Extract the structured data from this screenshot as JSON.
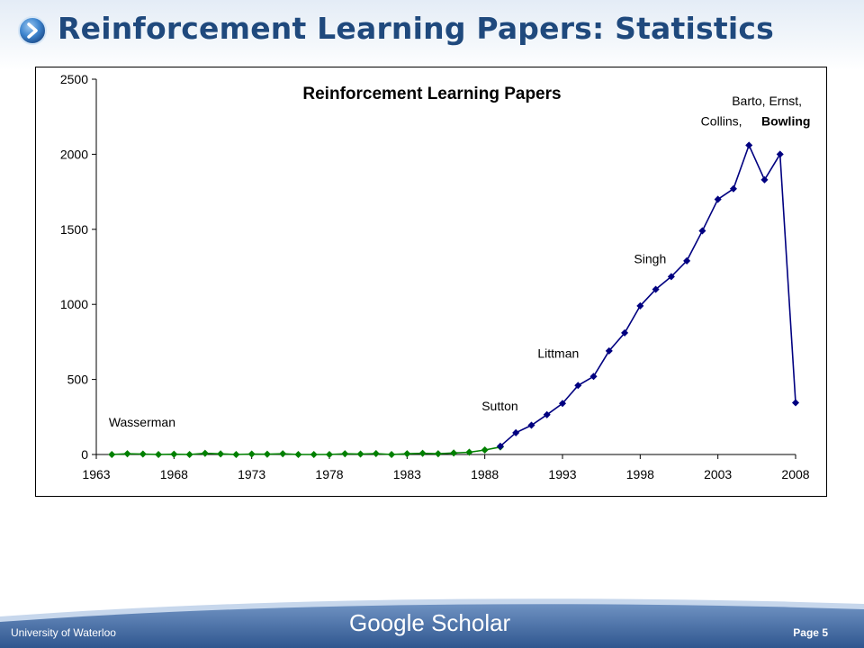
{
  "slide": {
    "title": "Reinforcement Learning Papers: Statistics",
    "footer_left": "University of Waterloo",
    "footer_center": "Google Scholar",
    "footer_right": "Page 5"
  },
  "colors": {
    "title": "#1f497d",
    "early_series": "#008000",
    "late_series": "#000080",
    "footer": "#3a5f96"
  },
  "icons": {
    "title_bullet": "chevron-right-icon"
  },
  "chart_data": {
    "type": "line",
    "title": "Reinforcement Learning Papers",
    "xlabel": "",
    "ylabel": "",
    "xlim": [
      1963,
      2008
    ],
    "ylim": [
      0,
      2500
    ],
    "x_ticks": [
      1963,
      1968,
      1973,
      1978,
      1983,
      1988,
      1993,
      1998,
      2003,
      2008
    ],
    "y_ticks": [
      0,
      500,
      1000,
      1500,
      2000,
      2500
    ],
    "grid": false,
    "legend": "none",
    "series": [
      {
        "color": "#008000",
        "x": [
          1964,
          1965,
          1966,
          1967,
          1968,
          1969,
          1970,
          1971,
          1972,
          1973,
          1974,
          1975,
          1976,
          1977,
          1978,
          1979,
          1980,
          1981,
          1982,
          1983,
          1984,
          1985,
          1986,
          1987,
          1988,
          1989
        ],
        "y": [
          0,
          5,
          3,
          0,
          2,
          0,
          8,
          4,
          0,
          3,
          2,
          5,
          0,
          0,
          0,
          5,
          3,
          6,
          0,
          5,
          8,
          5,
          10,
          15,
          30,
          50
        ]
      },
      {
        "color": "#000080",
        "x": [
          1989,
          1990,
          1991,
          1992,
          1993,
          1994,
          1995,
          1996,
          1997,
          1998,
          1999,
          2000,
          2001,
          2002,
          2003,
          2004,
          2005,
          2006,
          2007,
          2008
        ],
        "y": [
          55,
          145,
          195,
          265,
          340,
          460,
          520,
          690,
          810,
          990,
          1100,
          1185,
          1290,
          1490,
          1700,
          1770,
          2060,
          1830,
          2000,
          345
        ]
      }
    ],
    "annotations": [
      {
        "text": "Wasserman",
        "x": 1963.8,
        "y": 185
      },
      {
        "text": "Sutton",
        "x": 1987.8,
        "y": 295
      },
      {
        "text": "Littman",
        "x": 1991.4,
        "y": 645
      },
      {
        "text": "Singh",
        "x": 1997.6,
        "y": 1275
      },
      {
        "text": "Barto, Ernst,",
        "x": 2003.9,
        "y": 2325
      },
      {
        "text": "Collins, ",
        "x": 2001.9,
        "y": 2190
      },
      {
        "text": "Bowling",
        "x": 2005.8,
        "y": 2190,
        "bold": true
      }
    ]
  }
}
